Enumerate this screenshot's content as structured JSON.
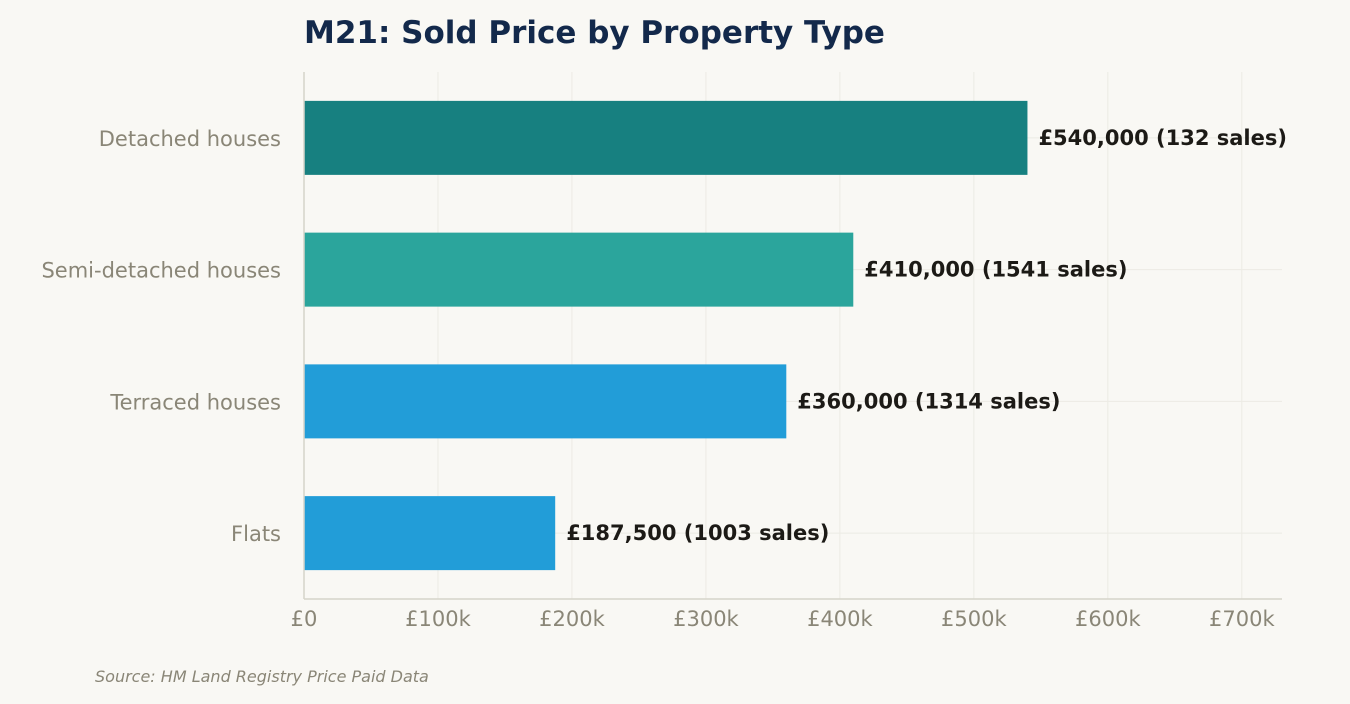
{
  "chart_data": {
    "type": "bar",
    "orientation": "horizontal",
    "title": "M21: Sold Price by Property Type",
    "categories": [
      "Detached houses",
      "Semi-detached houses",
      "Terraced houses",
      "Flats"
    ],
    "values": [
      540000,
      410000,
      360000,
      187500
    ],
    "sales": [
      132,
      1541,
      1314,
      1003
    ],
    "data_labels": [
      "£540,000  (132 sales)",
      "£410,000  (1541 sales)",
      "£360,000  (1314 sales)",
      "£187,500  (1003 sales)"
    ],
    "bar_colors": [
      "#178080",
      "#2ba59c",
      "#229dd8",
      "#229dd8"
    ],
    "xlim": [
      0,
      730000
    ],
    "x_ticks": [
      0,
      100000,
      200000,
      300000,
      400000,
      500000,
      600000,
      700000
    ],
    "x_tick_labels": [
      "£0",
      "£100k",
      "£200k",
      "£300k",
      "£400k",
      "£500k",
      "£600k",
      "£700k"
    ],
    "xlabel": "",
    "ylabel": "",
    "grid": true,
    "legend": "none"
  },
  "source_note": "Source: HM Land Registry Price Paid Data",
  "colors": {
    "background": "#f9f8f4",
    "title": "#13294b",
    "muted_text": "#8a8677",
    "data_label": "#1c1a16"
  }
}
